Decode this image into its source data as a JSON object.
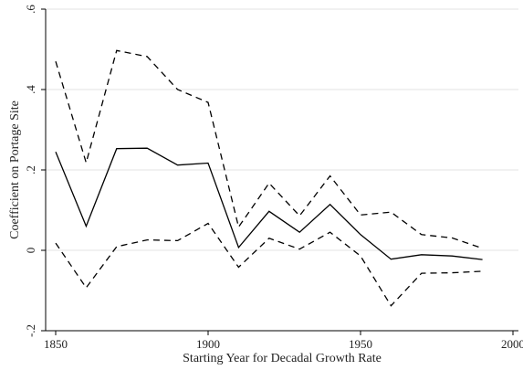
{
  "chart_data": {
    "type": "line",
    "title": "",
    "xlabel": "Starting Year for Decadal Growth Rate",
    "ylabel": "Coefficient on Portage Site",
    "xlim": [
      1845,
      2000
    ],
    "ylim": [
      -0.2,
      0.6
    ],
    "xticks": [
      1850,
      1900,
      1950,
      2000
    ],
    "xtick_labels": [
      "1850",
      "1900",
      "1950",
      "2000"
    ],
    "yticks": [
      -0.2,
      0,
      0.2,
      0.4,
      0.6
    ],
    "ytick_labels": [
      "-.2",
      "0",
      ".2",
      ".4",
      ".6"
    ],
    "grid": "horizontal",
    "legend": "none",
    "x": [
      1850,
      1860,
      1870,
      1880,
      1890,
      1900,
      1910,
      1920,
      1930,
      1940,
      1950,
      1960,
      1970,
      1980,
      1990
    ],
    "series": [
      {
        "role": "estimate",
        "style": "solid",
        "color": "#000000",
        "values": [
          0.245,
          0.06,
          0.253,
          0.254,
          0.212,
          0.217,
          0.007,
          0.097,
          0.045,
          0.114,
          0.039,
          -0.022,
          -0.011,
          -0.014,
          -0.023
        ]
      },
      {
        "role": "upper_bound",
        "style": "dashed",
        "color": "#000000",
        "values": [
          0.47,
          0.218,
          0.497,
          0.482,
          0.4,
          0.368,
          0.058,
          0.167,
          0.086,
          0.185,
          0.088,
          0.095,
          0.039,
          0.031,
          0.005
        ]
      },
      {
        "role": "lower_bound",
        "style": "dashed",
        "color": "#000000",
        "values": [
          0.018,
          -0.093,
          0.009,
          0.026,
          0.024,
          0.067,
          -0.042,
          0.03,
          0.003,
          0.045,
          -0.014,
          -0.138,
          -0.057,
          -0.056,
          -0.052
        ]
      }
    ]
  }
}
